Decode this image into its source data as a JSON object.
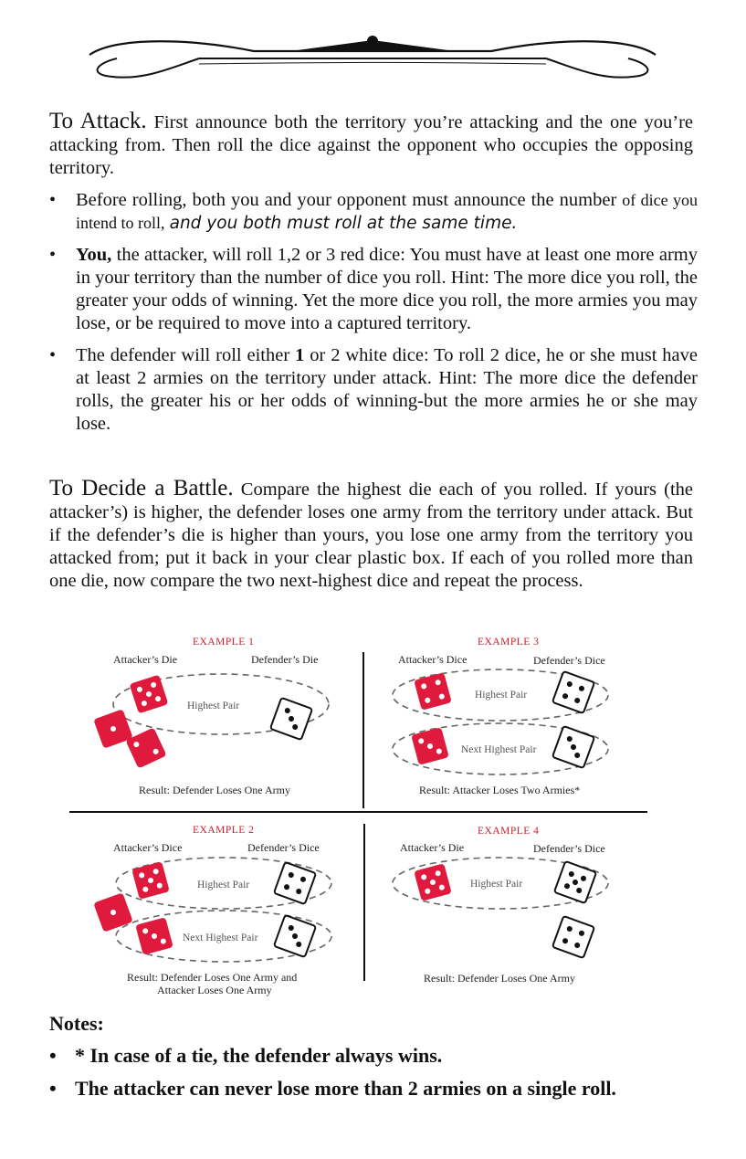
{
  "attack": {
    "heading": "To Attack.",
    "text": "First announce both the territory you’re attacking and the one you’re attacking from. Then roll the dice against the opponent who occupies the opposing territory.",
    "bullets": [
      {
        "lead": "Before rolling, both you and your opponent must announce the number",
        "small": "of dice you intend to roll,",
        "italic": "and you both must roll at the same time."
      },
      {
        "bold": "You,",
        "text": "the attacker, will roll 1,2 or 3 red dice: You must have at least one more army in your territory than the number of dice you roll. Hint: The more dice you roll, the greater your odds of winning. Yet the more dice you roll, the more armies you may lose, or be required to move into a captured territory."
      },
      {
        "lead": "The defender will roll either",
        "bold": "1",
        "text": "or 2 white dice: To roll 2 dice, he or she must have at least 2 armies on the territory under attack. Hint: The more dice the defender rolls, the greater his or her odds of winning-but the more armies he or she may lose."
      }
    ]
  },
  "battle": {
    "heading": "To Decide a Battle.",
    "text": "Compare the highest die each of you rolled. If yours (the attacker’s) is higher, the defender loses one army from the territory under attack. But if the defender’s die is higher than yours, you lose one army from the territory you attacked from; put it back in your clear plastic box. If each of you rolled more than one die, now compare the two next-highest dice and repeat the process."
  },
  "examples": {
    "ex1": {
      "title": "EXAMPLE 1",
      "attacker": "Attacker’s Die",
      "defender": "Defender’s Die",
      "pair": "Highest Pair",
      "result": "Result: Defender Loses One Army"
    },
    "ex2": {
      "title": "EXAMPLE 2",
      "attacker": "Attacker’s Dice",
      "defender": "Defender’s Dice",
      "pair": "Highest Pair",
      "pair2": "Next Highest Pair",
      "result1": "Result: Defender Loses One Army and",
      "result2": "Attacker Loses One Army"
    },
    "ex3": {
      "title": "EXAMPLE 3",
      "attacker": "Attacker’s Dice",
      "defender": "Defender’s Dice",
      "pair": "Highest Pair",
      "pair2": "Next Highest Pair",
      "result": "Result: Attacker Loses Two Armies*"
    },
    "ex4": {
      "title": "EXAMPLE 4",
      "attacker": "Attacker’s Die",
      "defender": "Defender’s Dice",
      "pair": "Highest Pair",
      "result": "Result: Defender Loses One Army"
    }
  },
  "notes": {
    "title": "Notes:",
    "items": [
      "* In case of a tie, the defender always wins.",
      "The attacker can never lose more than 2 armies on a single roll."
    ]
  },
  "colors": {
    "red_die": "#e01a3c",
    "red_text": "#cc1f2f"
  }
}
